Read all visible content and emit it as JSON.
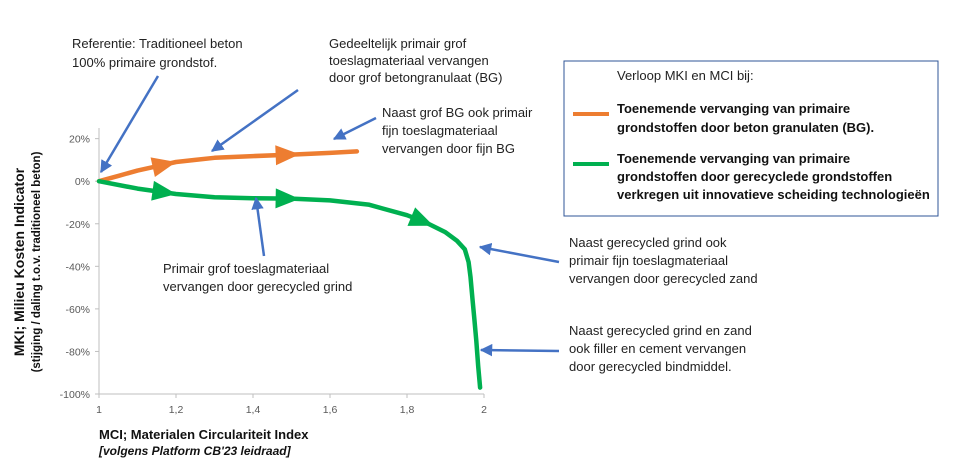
{
  "chart_data": {
    "type": "line",
    "title": "",
    "xlabel": "MCI; Materialen Circulariteit Index",
    "xlabel_sub": "[volgens Platform CB'23 leidraad]",
    "ylabel": "MKI; Milieu Kosten Indicator",
    "ylabel_sub": "(stijging / daling t.o.v. traditioneel beton)",
    "xlim": [
      1,
      2
    ],
    "ylim": [
      -100,
      25
    ],
    "x_ticks": [
      "1",
      "1,2",
      "1,4",
      "1,6",
      "1,8",
      "2"
    ],
    "y_ticks": [
      "20%",
      "0%",
      "-20%",
      "-40%",
      "-60%",
      "-80%",
      "-100%"
    ],
    "grid": false,
    "legend_position": "right",
    "legend": {
      "title": "Verloop MKI en MCI bij:",
      "items": [
        "Toenemende vervanging van primaire grondstoffen door beton granulaten (BG).",
        "Toenemende vervanging van primaire grondstoffen door gerecyclede grondstoffen verkregen uit innovatieve scheiding technologieën"
      ]
    },
    "series": [
      {
        "color": "#ed7d31",
        "x": [
          1.0,
          1.05,
          1.1,
          1.15,
          1.2,
          1.25,
          1.3,
          1.4,
          1.5,
          1.6,
          1.67
        ],
        "y": [
          0,
          2.5,
          5,
          7,
          9,
          10,
          11,
          11.8,
          12.5,
          13.3,
          14
        ],
        "arrows_at": [
          1.17,
          1.49
        ]
      },
      {
        "color": "#00b050",
        "x": [
          1.0,
          1.1,
          1.2,
          1.3,
          1.4,
          1.5,
          1.6,
          1.7,
          1.8,
          1.85,
          1.9,
          1.93,
          1.95,
          1.96,
          1.965,
          1.97,
          1.975,
          1.98,
          1.985,
          1.99
        ],
        "y": [
          0,
          -3.5,
          -6,
          -7.5,
          -8,
          -8.2,
          -9,
          -11,
          -16,
          -19.5,
          -24,
          -28,
          -32,
          -38,
          -45,
          -55,
          -65,
          -75,
          -87,
          -97
        ],
        "arrows_at": [
          1.17,
          1.49,
          1.84
        ]
      }
    ],
    "annotations": [
      {
        "lines": [
          "Referentie: Traditioneel beton",
          "100% primaire grondstof."
        ]
      },
      {
        "lines": [
          "Gedeeltelijk primair grof",
          "toeslagmateriaal vervangen",
          "door grof betongranulaat (BG)"
        ]
      },
      {
        "lines": [
          "Naast grof BG ook primair",
          "fijn toeslagmateriaal",
          "vervangen door fijn BG"
        ]
      },
      {
        "lines": [
          "Primair grof toeslagmateriaal",
          "vervangen door gerecycled grind"
        ]
      },
      {
        "lines": [
          "Naast gerecycled grind ook",
          "primair fijn toeslagmateriaal",
          "vervangen door gerecycled zand"
        ]
      },
      {
        "lines": [
          "Naast gerecycled grind en zand",
          "ook filler en cement vervangen",
          "door gerecycled bindmiddel."
        ]
      }
    ],
    "pointer_color": "#4472c4"
  }
}
